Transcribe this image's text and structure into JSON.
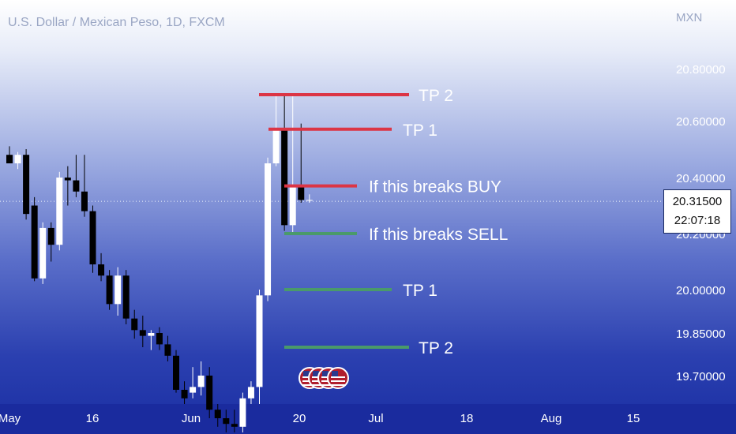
{
  "chart_data": {
    "type": "candlestick",
    "title": "U.S. Dollar / Mexican Peso, 1D, FXCM",
    "y_axis_unit": "MXN",
    "y_ticks": [
      "20.80000",
      "20.60000",
      "20.40000",
      "20.20000",
      "20.00000",
      "19.85000",
      "19.70000"
    ],
    "x_ticks": [
      "May",
      "16",
      "Jun",
      "20",
      "Jul",
      "18",
      "Aug",
      "15"
    ],
    "current_price": "20.31500",
    "countdown": "22:07:18",
    "candles": [
      {
        "o": 20.48,
        "h": 20.51,
        "l": 20.46,
        "c": 20.45
      },
      {
        "o": 20.45,
        "h": 20.49,
        "l": 20.43,
        "c": 20.48
      },
      {
        "o": 20.48,
        "h": 20.5,
        "l": 20.25,
        "c": 20.27
      },
      {
        "o": 20.3,
        "h": 20.33,
        "l": 20.03,
        "c": 20.04
      },
      {
        "o": 20.04,
        "h": 20.24,
        "l": 20.02,
        "c": 20.22
      },
      {
        "o": 20.22,
        "h": 20.24,
        "l": 20.1,
        "c": 20.16
      },
      {
        "o": 20.16,
        "h": 20.42,
        "l": 20.14,
        "c": 20.4
      },
      {
        "o": 20.4,
        "h": 20.44,
        "l": 20.3,
        "c": 20.39
      },
      {
        "o": 20.39,
        "h": 20.48,
        "l": 20.33,
        "c": 20.35
      },
      {
        "o": 20.35,
        "h": 20.48,
        "l": 20.26,
        "c": 20.28
      },
      {
        "o": 20.28,
        "h": 20.3,
        "l": 20.06,
        "c": 20.09
      },
      {
        "o": 20.09,
        "h": 20.13,
        "l": 20.03,
        "c": 20.05
      },
      {
        "o": 20.05,
        "h": 20.07,
        "l": 19.93,
        "c": 19.95
      },
      {
        "o": 19.95,
        "h": 20.08,
        "l": 19.91,
        "c": 20.05
      },
      {
        "o": 20.05,
        "h": 20.07,
        "l": 19.88,
        "c": 19.9
      },
      {
        "o": 19.9,
        "h": 19.93,
        "l": 19.83,
        "c": 19.86
      },
      {
        "o": 19.86,
        "h": 19.91,
        "l": 19.8,
        "c": 19.84
      },
      {
        "o": 19.84,
        "h": 19.86,
        "l": 19.79,
        "c": 19.85
      },
      {
        "o": 19.85,
        "h": 19.87,
        "l": 19.79,
        "c": 19.81
      },
      {
        "o": 19.81,
        "h": 19.84,
        "l": 19.75,
        "c": 19.77
      },
      {
        "o": 19.77,
        "h": 19.79,
        "l": 19.64,
        "c": 19.65
      },
      {
        "o": 19.65,
        "h": 19.68,
        "l": 19.6,
        "c": 19.62
      },
      {
        "o": 19.64,
        "h": 19.73,
        "l": 19.62,
        "c": 19.66
      },
      {
        "o": 19.66,
        "h": 19.75,
        "l": 19.63,
        "c": 19.7
      },
      {
        "o": 19.7,
        "h": 19.73,
        "l": 19.55,
        "c": 19.58
      },
      {
        "o": 19.58,
        "h": 19.6,
        "l": 19.52,
        "c": 19.55
      },
      {
        "o": 19.55,
        "h": 19.58,
        "l": 19.5,
        "c": 19.53
      },
      {
        "o": 19.53,
        "h": 19.58,
        "l": 19.5,
        "c": 19.52
      },
      {
        "o": 19.52,
        "h": 19.64,
        "l": 19.5,
        "c": 19.62
      },
      {
        "o": 19.62,
        "h": 19.68,
        "l": 19.6,
        "c": 19.66
      },
      {
        "o": 19.66,
        "h": 20.0,
        "l": 19.6,
        "c": 19.98
      },
      {
        "o": 19.98,
        "h": 20.47,
        "l": 19.96,
        "c": 20.45
      },
      {
        "o": 20.45,
        "h": 20.7,
        "l": 20.44,
        "c": 20.57
      },
      {
        "o": 20.57,
        "h": 20.7,
        "l": 20.21,
        "c": 20.23
      },
      {
        "o": 20.23,
        "h": 20.7,
        "l": 20.2,
        "c": 20.37
      },
      {
        "o": 20.37,
        "h": 20.59,
        "l": 20.31,
        "c": 20.32
      },
      {
        "o": 20.32,
        "h": 20.34,
        "l": 20.31,
        "c": 20.32
      }
    ],
    "levels": [
      {
        "label": "TP 2",
        "price": 20.7,
        "color": "#dc3545"
      },
      {
        "label": "TP 1",
        "price": 20.57,
        "color": "#dc3545"
      },
      {
        "label": "If this breaks BUY",
        "price": 20.37,
        "color": "#dc3545"
      },
      {
        "label": "If this breaks SELL",
        "price": 20.2,
        "color": "#4a9a6a"
      },
      {
        "label": "TP 1",
        "price": 20.0,
        "color": "#4a9a6a"
      },
      {
        "label": "TP 2",
        "price": 19.8,
        "color": "#4a9a6a"
      }
    ],
    "colors": {
      "up_candle": "#ffffff",
      "down_candle": "#000000",
      "axis_text": "#ffffff",
      "current_line": "#ffffff"
    },
    "event_icons": [
      "us-flag-icon",
      "us-flag-icon",
      "us-flag-icon",
      "us-flag-icon"
    ],
    "grid": false
  }
}
